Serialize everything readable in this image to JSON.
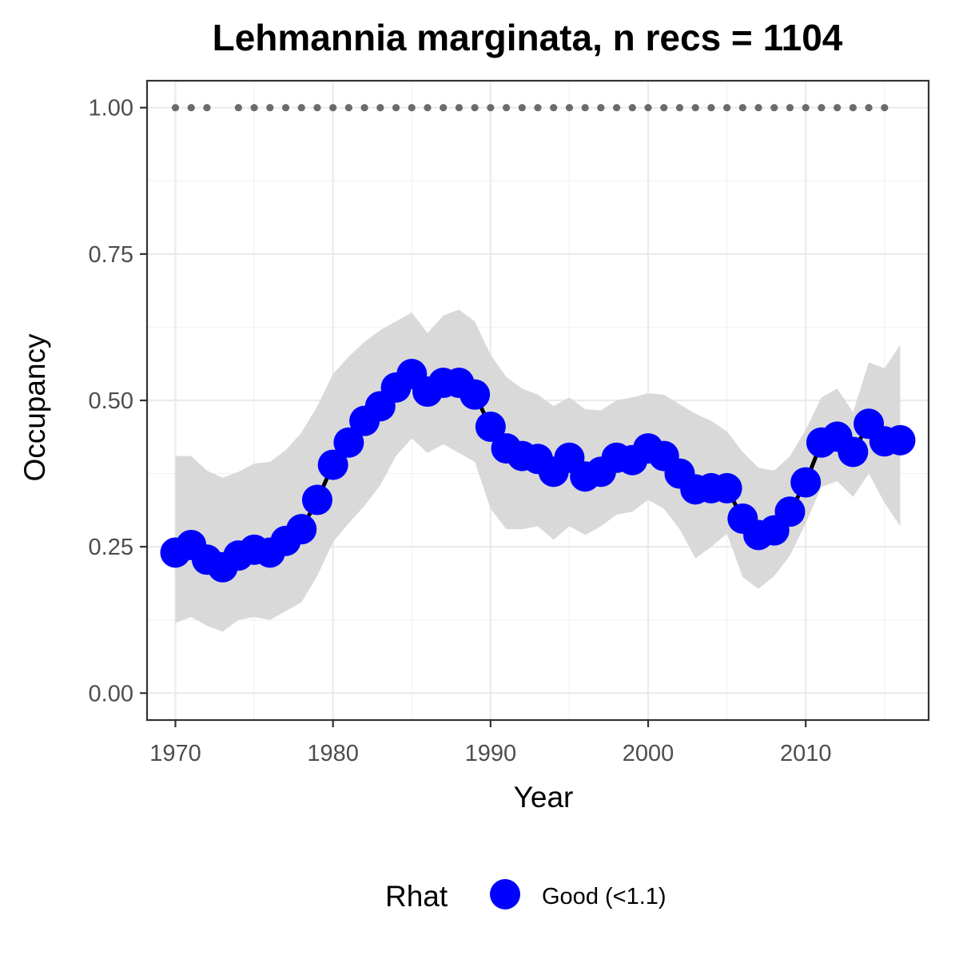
{
  "chart_data": {
    "type": "line",
    "title": "Lehmannia marginata, n recs = 1104",
    "xlabel": "Year",
    "ylabel": "Occupancy",
    "xlim": [
      1968.2,
      2017.8
    ],
    "ylim": [
      -0.046,
      1.046
    ],
    "x_ticks": [
      1970,
      1980,
      1990,
      2000,
      2010
    ],
    "x_tick_labels": [
      "1970",
      "1980",
      "1990",
      "2000",
      "2010"
    ],
    "y_ticks": [
      0,
      0.25,
      0.5,
      0.75,
      1.0
    ],
    "y_tick_labels": [
      "0.00",
      "0.25",
      "0.50",
      "0.75",
      "1.00"
    ],
    "grid": true,
    "legend_position": "bottom",
    "legend": {
      "title": "Rhat",
      "entries": [
        {
          "label": "Good (<1.1)",
          "color": "#0000ff"
        }
      ]
    },
    "colors": {
      "points": "#0000ff",
      "line": "#000000",
      "ribbon": "#d9d9d9",
      "record_dots": "#6b6b6b"
    },
    "x": [
      1970,
      1971,
      1972,
      1973,
      1974,
      1975,
      1976,
      1977,
      1978,
      1979,
      1980,
      1981,
      1982,
      1983,
      1984,
      1985,
      1986,
      1987,
      1988,
      1989,
      1990,
      1991,
      1992,
      1993,
      1994,
      1995,
      1996,
      1997,
      1998,
      1999,
      2000,
      2001,
      2002,
      2003,
      2004,
      2005,
      2006,
      2007,
      2008,
      2009,
      2010,
      2011,
      2012,
      2013,
      2014,
      2015,
      2016
    ],
    "series": [
      {
        "values": [
          0.24,
          0.253,
          0.228,
          0.215,
          0.235,
          0.245,
          0.24,
          0.26,
          0.28,
          0.33,
          0.39,
          0.428,
          0.465,
          0.49,
          0.522,
          0.545,
          0.515,
          0.53,
          0.53,
          0.51,
          0.455,
          0.418,
          0.405,
          0.4,
          0.378,
          0.402,
          0.37,
          0.378,
          0.402,
          0.398,
          0.418,
          0.405,
          0.375,
          0.348,
          0.35,
          0.35,
          0.298,
          0.27,
          0.278,
          0.31,
          0.36,
          0.428,
          0.438,
          0.412,
          0.46,
          0.43,
          0.432
        ],
        "lower": [
          0.12,
          0.13,
          0.115,
          0.105,
          0.125,
          0.13,
          0.125,
          0.14,
          0.155,
          0.2,
          0.258,
          0.29,
          0.32,
          0.355,
          0.405,
          0.435,
          0.41,
          0.425,
          0.41,
          0.395,
          0.315,
          0.28,
          0.28,
          0.285,
          0.262,
          0.285,
          0.27,
          0.285,
          0.305,
          0.31,
          0.33,
          0.315,
          0.28,
          0.23,
          0.25,
          0.272,
          0.198,
          0.178,
          0.2,
          0.235,
          0.29,
          0.352,
          0.362,
          0.335,
          0.375,
          0.325,
          0.285
        ],
        "upper": [
          0.405,
          0.405,
          0.38,
          0.368,
          0.378,
          0.392,
          0.395,
          0.415,
          0.445,
          0.49,
          0.545,
          0.575,
          0.6,
          0.62,
          0.635,
          0.65,
          0.615,
          0.645,
          0.655,
          0.635,
          0.578,
          0.54,
          0.52,
          0.51,
          0.49,
          0.505,
          0.485,
          0.483,
          0.5,
          0.505,
          0.512,
          0.51,
          0.493,
          0.477,
          0.465,
          0.447,
          0.412,
          0.385,
          0.38,
          0.405,
          0.45,
          0.505,
          0.52,
          0.48,
          0.565,
          0.555,
          0.595
        ]
      }
    ],
    "record_years": [
      1970,
      1971,
      1972,
      1974,
      1975,
      1976,
      1977,
      1978,
      1979,
      1980,
      1981,
      1982,
      1983,
      1984,
      1985,
      1986,
      1987,
      1988,
      1989,
      1990,
      1991,
      1992,
      1993,
      1994,
      1995,
      1996,
      1997,
      1998,
      1999,
      2000,
      2001,
      2002,
      2003,
      2004,
      2005,
      2006,
      2007,
      2008,
      2009,
      2010,
      2011,
      2012,
      2013,
      2014,
      2015
    ],
    "record_value": 1.0
  }
}
